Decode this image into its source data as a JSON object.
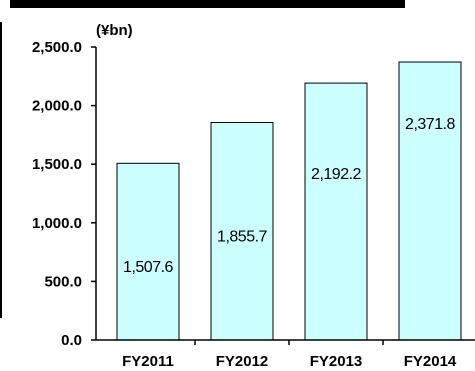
{
  "chart_data": {
    "type": "bar",
    "unit": "(¥bn)",
    "categories": [
      "FY2011",
      "FY2012",
      "FY2013",
      "FY2014"
    ],
    "values": [
      1507.6,
      1855.7,
      2192.2,
      2371.8
    ],
    "data_labels": [
      "1,507.6",
      "1,855.7",
      "2,192.2",
      "2,371.8"
    ],
    "y_ticks": [
      "0.0",
      "500.0",
      "1,000.0",
      "1,500.0",
      "2,000.0",
      "2,500.0"
    ],
    "y_tick_values": [
      0,
      500,
      1000,
      1500,
      2000,
      2500
    ],
    "ylim": [
      0,
      2500
    ],
    "grid": false,
    "colors": {
      "bar_fill": "#ccffff",
      "bar_stroke": "#000000",
      "axis": "#000000"
    }
  }
}
